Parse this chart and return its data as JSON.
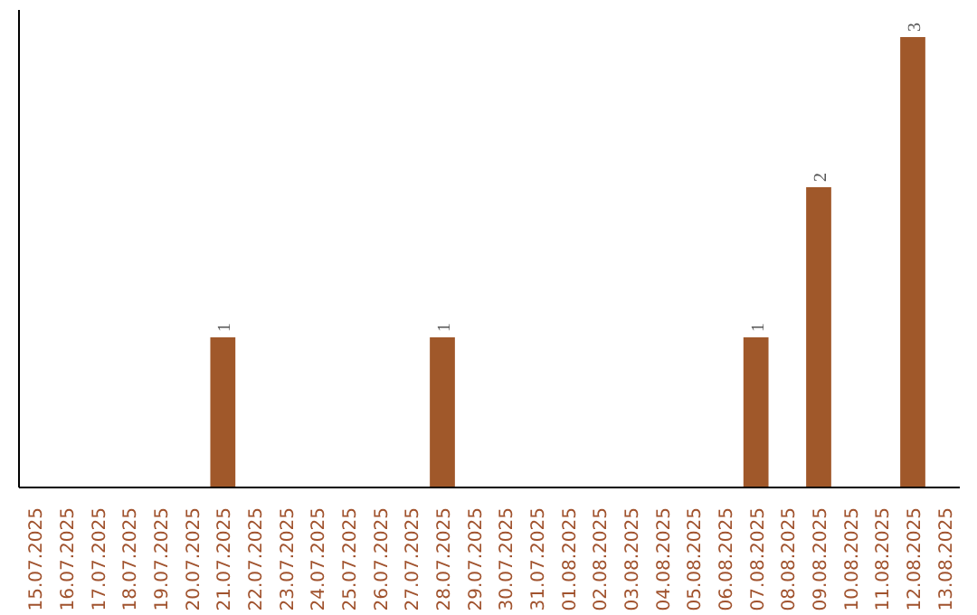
{
  "chart_data": {
    "type": "bar",
    "categories": [
      "15.07.2025",
      "16.07.2025",
      "17.07.2025",
      "18.07.2025",
      "19.07.2025",
      "20.07.2025",
      "21.07.2025",
      "22.07.2025",
      "23.07.2025",
      "24.07.2025",
      "25.07.2025",
      "26.07.2025",
      "27.07.2025",
      "28.07.2025",
      "29.07.2025",
      "30.07.2025",
      "31.07.2025",
      "01.08.2025",
      "02.08.2025",
      "03.08.2025",
      "04.08.2025",
      "05.08.2025",
      "06.08.2025",
      "07.08.2025",
      "08.08.2025",
      "09.08.2025",
      "10.08.2025",
      "11.08.2025",
      "12.08.2025",
      "13.08.2025"
    ],
    "values": [
      0,
      0,
      0,
      0,
      0,
      0,
      1,
      0,
      0,
      0,
      0,
      0,
      0,
      1,
      0,
      0,
      0,
      0,
      0,
      0,
      0,
      0,
      0,
      1,
      0,
      2,
      0,
      0,
      3,
      0
    ],
    "value_labels": [
      null,
      null,
      null,
      null,
      null,
      null,
      "1",
      null,
      null,
      null,
      null,
      null,
      null,
      "1",
      null,
      null,
      null,
      null,
      null,
      null,
      null,
      null,
      null,
      "1",
      null,
      "2",
      null,
      null,
      "3",
      null
    ],
    "color": "#a0582a",
    "grid": false
  }
}
